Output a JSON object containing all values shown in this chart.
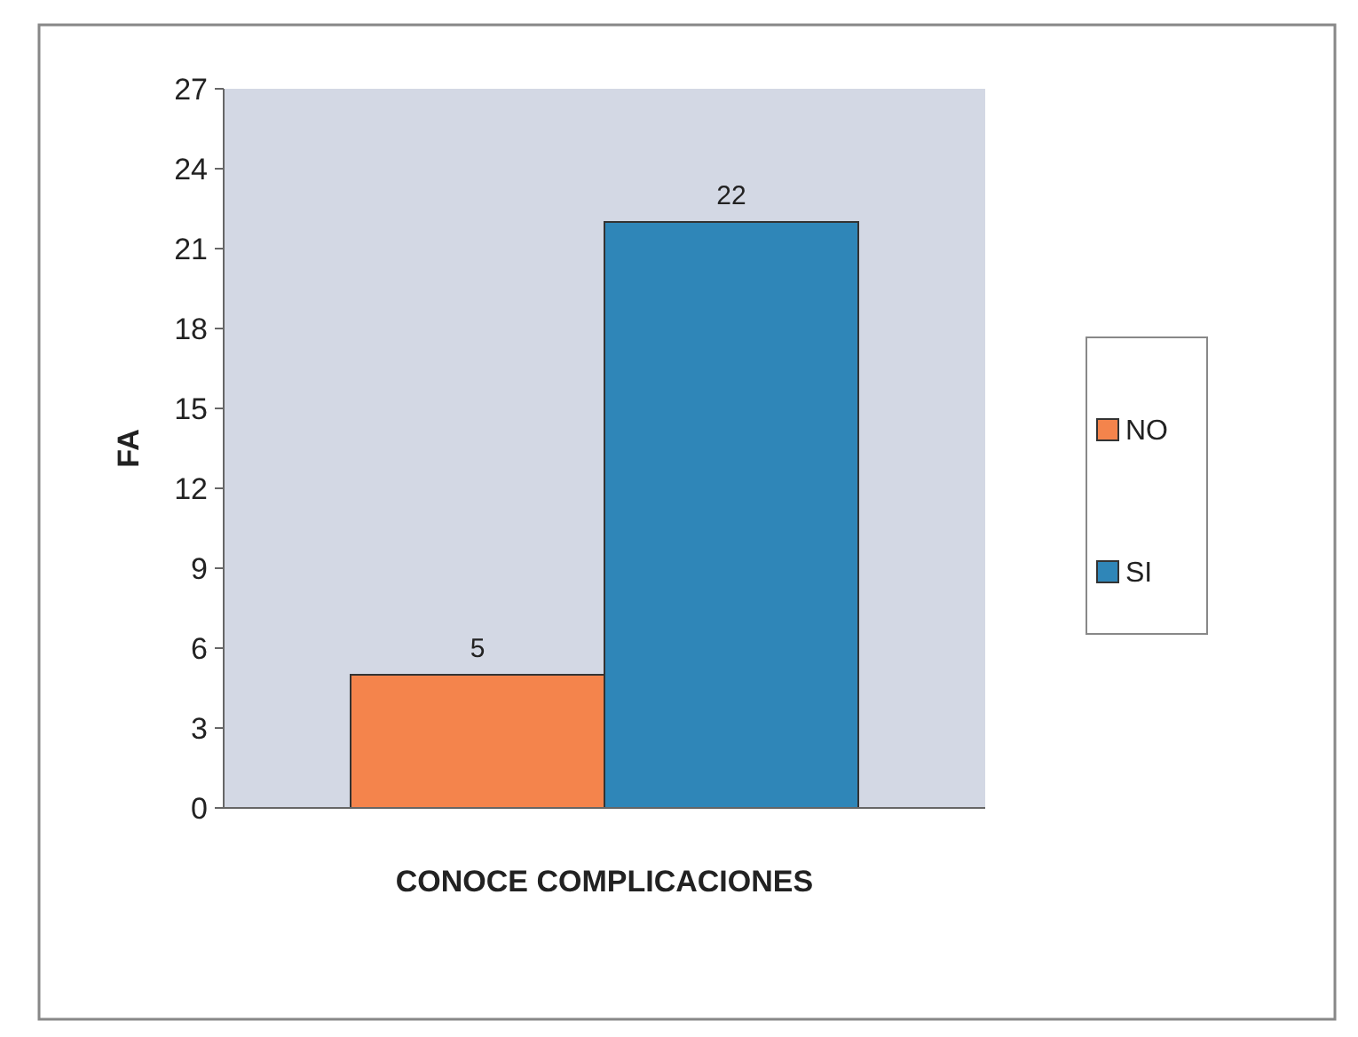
{
  "chart_data": {
    "type": "bar",
    "xlabel": "CONOCE COMPLICACIONES",
    "ylabel": "FA",
    "categories": [
      null
    ],
    "series": [
      {
        "name": "NO",
        "color": "#f4844c",
        "values": [
          5
        ]
      },
      {
        "name": "SI",
        "color": "#2f86b8",
        "values": [
          22
        ]
      }
    ],
    "ylim": [
      0,
      27
    ],
    "yticks": [
      0,
      3,
      6,
      9,
      12,
      15,
      18,
      21,
      24,
      27
    ],
    "grid": false,
    "legend": "right",
    "data_labels": true
  }
}
